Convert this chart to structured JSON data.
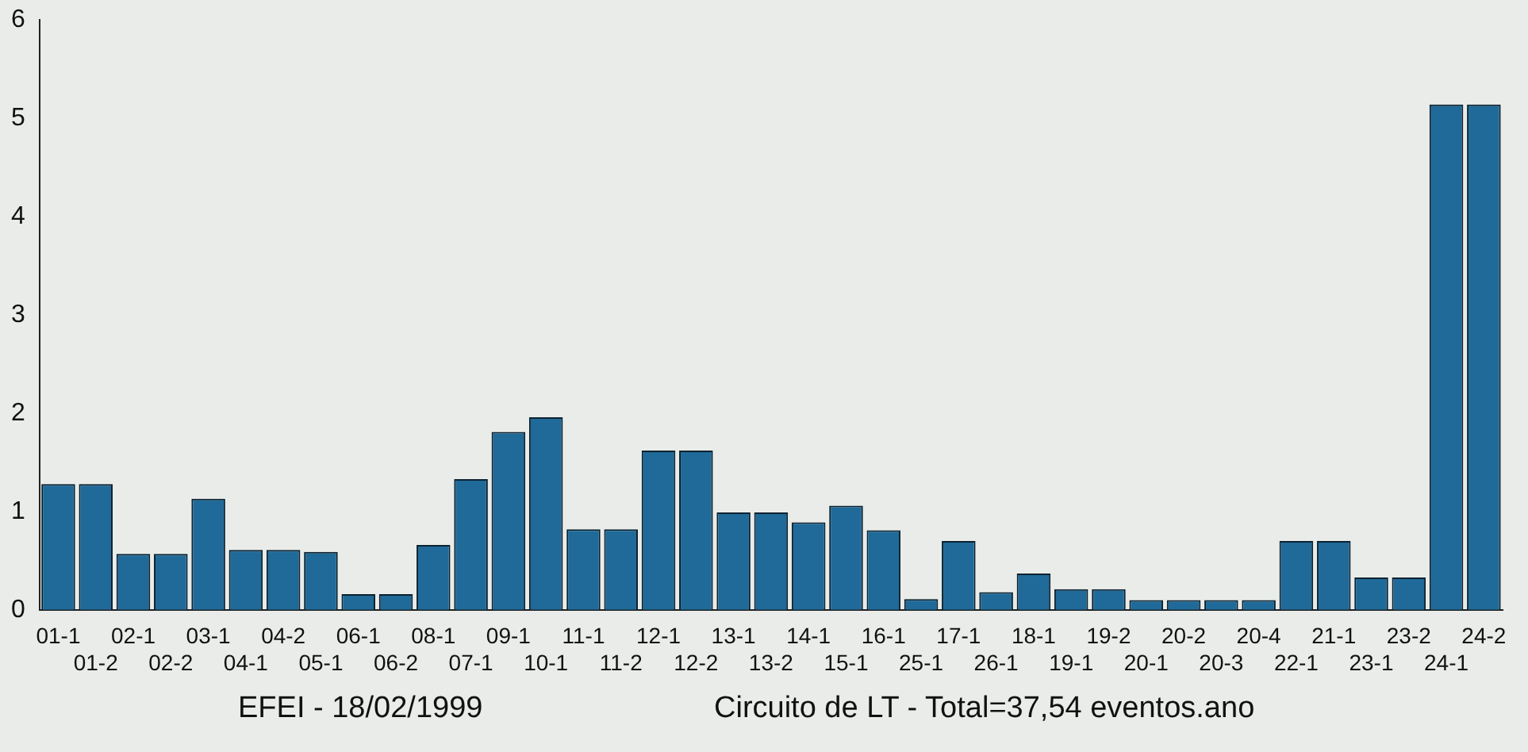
{
  "chart_data": {
    "type": "bar",
    "categories": [
      "01-1",
      "01-2",
      "02-1",
      "02-2",
      "03-1",
      "04-1",
      "04-2",
      "05-1",
      "06-1",
      "06-2",
      "08-1",
      "07-1",
      "09-1",
      "10-1",
      "11-1",
      "11-2",
      "12-1",
      "12-2",
      "13-1",
      "13-2",
      "14-1",
      "15-1",
      "16-1",
      "25-1",
      "17-1",
      "26-1",
      "18-1",
      "19-1",
      "19-2",
      "20-1",
      "20-2",
      "20-3",
      "20-4",
      "22-1",
      "21-1",
      "23-1",
      "23-2",
      "24-1",
      "24-2"
    ],
    "values": [
      1.28,
      1.28,
      0.57,
      0.57,
      1.13,
      0.61,
      0.61,
      0.59,
      0.16,
      0.16,
      0.66,
      1.33,
      1.81,
      1.96,
      0.82,
      0.82,
      1.62,
      1.62,
      0.99,
      0.99,
      0.89,
      1.06,
      0.81,
      0.11,
      0.7,
      0.18,
      0.37,
      0.21,
      0.21,
      0.1,
      0.1,
      0.1,
      0.1,
      0.7,
      0.7,
      0.33,
      0.33,
      5.14,
      5.14
    ],
    "color": "#1f6a99",
    "ylim": [
      0,
      6
    ],
    "yticks": [
      0,
      1,
      2,
      3,
      4,
      5,
      6
    ],
    "grid": false,
    "legend": false,
    "annotations": [
      "EFEI - 18/02/1999",
      "Circuito de LT - Total=37,54 eventos.ano"
    ]
  }
}
